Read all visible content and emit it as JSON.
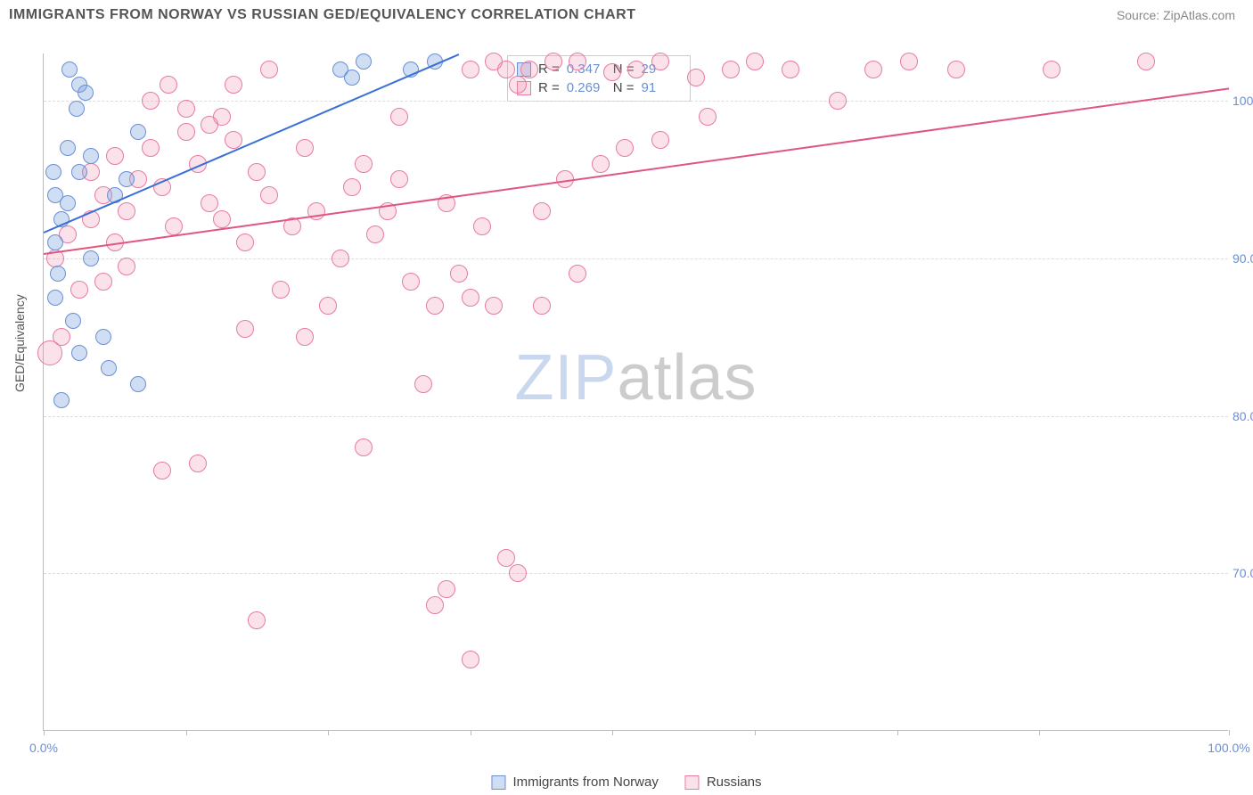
{
  "title": "IMMIGRANTS FROM NORWAY VS RUSSIAN GED/EQUIVALENCY CORRELATION CHART",
  "source": "Source: ZipAtlas.com",
  "ylabel": "GED/Equivalency",
  "watermark_a": "ZIP",
  "watermark_b": "atlas",
  "colors": {
    "series1_fill": "rgba(120,160,220,0.35)",
    "series1_stroke": "#6b8fd4",
    "series2_fill": "rgba(240,140,170,0.25)",
    "series2_stroke": "#e77ba0",
    "trend1": "#3a6fd8",
    "trend2": "#e0567f",
    "axis_label": "#6b8fd4"
  },
  "xlim": [
    0,
    100
  ],
  "ylim": [
    60,
    103
  ],
  "xticks": [
    0,
    12,
    24,
    36,
    48,
    60,
    72,
    84,
    100
  ],
  "xtick_labels": {
    "0": "0.0%",
    "100": "100.0%"
  },
  "yticks": [
    70,
    80,
    90,
    100
  ],
  "ytick_labels": {
    "70": "70.0%",
    "80": "80.0%",
    "90": "90.0%",
    "100": "100.0%"
  },
  "legend": {
    "series1": "Immigrants from Norway",
    "series2": "Russians"
  },
  "stats": {
    "r_label": "R =",
    "n_label": "N =",
    "series1_r": "0.347",
    "series1_n": "29",
    "series2_r": "0.269",
    "series2_n": "91"
  },
  "trend_lines": {
    "series1": {
      "x1": 0,
      "y1": 91.7,
      "x2": 35,
      "y2": 103
    },
    "series2": {
      "x1": 0,
      "y1": 90.3,
      "x2": 100,
      "y2": 100.8
    }
  },
  "series1_points": [
    {
      "x": 1,
      "y": 91,
      "r": 9
    },
    {
      "x": 1.5,
      "y": 92.5,
      "r": 9
    },
    {
      "x": 2,
      "y": 97,
      "r": 9
    },
    {
      "x": 2.2,
      "y": 102,
      "r": 9
    },
    {
      "x": 3,
      "y": 101,
      "r": 9
    },
    {
      "x": 2.8,
      "y": 99.5,
      "r": 9
    },
    {
      "x": 3.5,
      "y": 100.5,
      "r": 9
    },
    {
      "x": 1,
      "y": 87.5,
      "r": 9
    },
    {
      "x": 1.2,
      "y": 89,
      "r": 9
    },
    {
      "x": 2,
      "y": 93.5,
      "r": 9
    },
    {
      "x": 3,
      "y": 95.5,
      "r": 9
    },
    {
      "x": 4,
      "y": 96.5,
      "r": 9
    },
    {
      "x": 1.5,
      "y": 81,
      "r": 9
    },
    {
      "x": 5,
      "y": 85,
      "r": 9
    },
    {
      "x": 8,
      "y": 98,
      "r": 9
    },
    {
      "x": 6,
      "y": 94,
      "r": 9
    },
    {
      "x": 7,
      "y": 95,
      "r": 9
    },
    {
      "x": 5.5,
      "y": 83,
      "r": 9
    },
    {
      "x": 3,
      "y": 84,
      "r": 9
    },
    {
      "x": 2.5,
      "y": 86,
      "r": 9
    },
    {
      "x": 8,
      "y": 82,
      "r": 9
    },
    {
      "x": 25,
      "y": 102,
      "r": 9
    },
    {
      "x": 26,
      "y": 101.5,
      "r": 9
    },
    {
      "x": 27,
      "y": 102.5,
      "r": 9
    },
    {
      "x": 31,
      "y": 102,
      "r": 9
    },
    {
      "x": 33,
      "y": 102.5,
      "r": 9
    },
    {
      "x": 4,
      "y": 90,
      "r": 9
    },
    {
      "x": 1,
      "y": 94,
      "r": 9
    },
    {
      "x": 0.8,
      "y": 95.5,
      "r": 9
    }
  ],
  "series2_points": [
    {
      "x": 0.5,
      "y": 84,
      "r": 14
    },
    {
      "x": 1,
      "y": 90,
      "r": 10
    },
    {
      "x": 2,
      "y": 91.5,
      "r": 10
    },
    {
      "x": 3,
      "y": 88,
      "r": 10
    },
    {
      "x": 4,
      "y": 92.5,
      "r": 10
    },
    {
      "x": 5,
      "y": 94,
      "r": 10
    },
    {
      "x": 6,
      "y": 96.5,
      "r": 10
    },
    {
      "x": 7,
      "y": 93,
      "r": 10
    },
    {
      "x": 8,
      "y": 95,
      "r": 10
    },
    {
      "x": 9,
      "y": 97,
      "r": 10
    },
    {
      "x": 10,
      "y": 94.5,
      "r": 10
    },
    {
      "x": 11,
      "y": 92,
      "r": 10
    },
    {
      "x": 12,
      "y": 98,
      "r": 10
    },
    {
      "x": 13,
      "y": 96,
      "r": 10
    },
    {
      "x": 14,
      "y": 93.5,
      "r": 10
    },
    {
      "x": 15,
      "y": 99,
      "r": 10
    },
    {
      "x": 16,
      "y": 97.5,
      "r": 10
    },
    {
      "x": 17,
      "y": 91,
      "r": 10
    },
    {
      "x": 18,
      "y": 95.5,
      "r": 10
    },
    {
      "x": 19,
      "y": 94,
      "r": 10
    },
    {
      "x": 20,
      "y": 88,
      "r": 10
    },
    {
      "x": 21,
      "y": 92,
      "r": 10
    },
    {
      "x": 22,
      "y": 85,
      "r": 10
    },
    {
      "x": 23,
      "y": 93,
      "r": 10
    },
    {
      "x": 24,
      "y": 87,
      "r": 10
    },
    {
      "x": 25,
      "y": 90,
      "r": 10
    },
    {
      "x": 26,
      "y": 94.5,
      "r": 10
    },
    {
      "x": 27,
      "y": 78,
      "r": 10
    },
    {
      "x": 28,
      "y": 91.5,
      "r": 10
    },
    {
      "x": 29,
      "y": 93,
      "r": 10
    },
    {
      "x": 30,
      "y": 99,
      "r": 10
    },
    {
      "x": 31,
      "y": 88.5,
      "r": 10
    },
    {
      "x": 32,
      "y": 82,
      "r": 10
    },
    {
      "x": 33,
      "y": 87,
      "r": 10
    },
    {
      "x": 34,
      "y": 93.5,
      "r": 10
    },
    {
      "x": 35,
      "y": 89,
      "r": 10
    },
    {
      "x": 36,
      "y": 102,
      "r": 10
    },
    {
      "x": 10,
      "y": 76.5,
      "r": 10
    },
    {
      "x": 17,
      "y": 85.5,
      "r": 10
    },
    {
      "x": 13,
      "y": 77,
      "r": 10
    },
    {
      "x": 38,
      "y": 87,
      "r": 10
    },
    {
      "x": 33,
      "y": 68,
      "r": 10
    },
    {
      "x": 36,
      "y": 64.5,
      "r": 10
    },
    {
      "x": 18,
      "y": 67,
      "r": 10
    },
    {
      "x": 39,
      "y": 71,
      "r": 10
    },
    {
      "x": 40,
      "y": 70,
      "r": 10
    },
    {
      "x": 34,
      "y": 69,
      "r": 10
    },
    {
      "x": 36,
      "y": 87.5,
      "r": 10
    },
    {
      "x": 37,
      "y": 92,
      "r": 10
    },
    {
      "x": 39,
      "y": 102,
      "r": 10
    },
    {
      "x": 40,
      "y": 101,
      "r": 10
    },
    {
      "x": 45,
      "y": 102.5,
      "r": 10
    },
    {
      "x": 50,
      "y": 102,
      "r": 10
    },
    {
      "x": 52,
      "y": 102.5,
      "r": 10
    },
    {
      "x": 55,
      "y": 101.5,
      "r": 10
    },
    {
      "x": 58,
      "y": 102,
      "r": 10
    },
    {
      "x": 60,
      "y": 102.5,
      "r": 10
    },
    {
      "x": 63,
      "y": 102,
      "r": 10
    },
    {
      "x": 47,
      "y": 96,
      "r": 10
    },
    {
      "x": 49,
      "y": 97,
      "r": 10
    },
    {
      "x": 67,
      "y": 100,
      "r": 10
    },
    {
      "x": 70,
      "y": 102,
      "r": 10
    },
    {
      "x": 73,
      "y": 102.5,
      "r": 10
    },
    {
      "x": 77,
      "y": 102,
      "r": 10
    },
    {
      "x": 85,
      "y": 102,
      "r": 10
    },
    {
      "x": 93,
      "y": 102.5,
      "r": 10
    },
    {
      "x": 19,
      "y": 102,
      "r": 10
    },
    {
      "x": 16,
      "y": 101,
      "r": 10
    },
    {
      "x": 12,
      "y": 99.5,
      "r": 10
    },
    {
      "x": 14,
      "y": 98.5,
      "r": 10
    },
    {
      "x": 4,
      "y": 95.5,
      "r": 10
    },
    {
      "x": 6,
      "y": 91,
      "r": 10
    },
    {
      "x": 45,
      "y": 89,
      "r": 10
    },
    {
      "x": 42,
      "y": 93,
      "r": 10
    },
    {
      "x": 42,
      "y": 87,
      "r": 10
    },
    {
      "x": 30,
      "y": 95,
      "r": 10
    },
    {
      "x": 5,
      "y": 88.5,
      "r": 10
    },
    {
      "x": 7,
      "y": 89.5,
      "r": 10
    },
    {
      "x": 15,
      "y": 92.5,
      "r": 10
    },
    {
      "x": 22,
      "y": 97,
      "r": 10
    },
    {
      "x": 27,
      "y": 96,
      "r": 10
    },
    {
      "x": 44,
      "y": 95,
      "r": 10
    },
    {
      "x": 52,
      "y": 97.5,
      "r": 10
    },
    {
      "x": 1.5,
      "y": 85,
      "r": 10
    },
    {
      "x": 38,
      "y": 102.5,
      "r": 10
    },
    {
      "x": 41,
      "y": 102,
      "r": 10
    },
    {
      "x": 43,
      "y": 102.5,
      "r": 10
    },
    {
      "x": 48,
      "y": 101.8,
      "r": 10
    },
    {
      "x": 56,
      "y": 99,
      "r": 10
    },
    {
      "x": 9,
      "y": 100,
      "r": 10
    },
    {
      "x": 10.5,
      "y": 101,
      "r": 10
    }
  ]
}
